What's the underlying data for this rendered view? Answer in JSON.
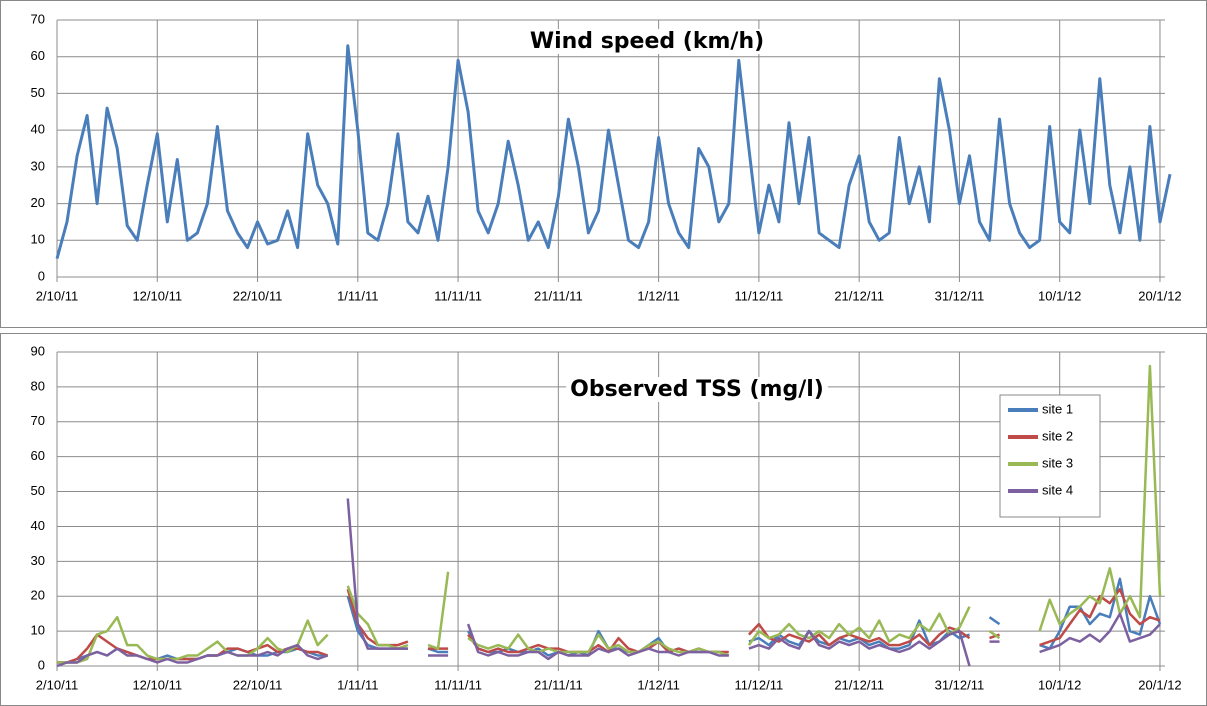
{
  "chart_data": [
    {
      "type": "line",
      "title": "Wind speed (km/h)",
      "color": "#4a7ebb",
      "grid": true,
      "x": [
        "2011-10-02",
        "2011-10-03",
        "2011-10-04",
        "2011-10-05",
        "2011-10-06",
        "2011-10-07",
        "2011-10-08",
        "2011-10-09",
        "2011-10-10",
        "2011-10-11",
        "2011-10-12",
        "2011-10-13",
        "2011-10-14",
        "2011-10-15",
        "2011-10-16",
        "2011-10-17",
        "2011-10-18",
        "2011-10-19",
        "2011-10-20",
        "2011-10-21",
        "2011-10-22",
        "2011-10-23",
        "2011-10-24",
        "2011-10-25",
        "2011-10-26",
        "2011-10-27",
        "2011-10-28",
        "2011-10-29",
        "2011-10-30",
        "2011-10-31",
        "2011-11-01",
        "2011-11-02",
        "2011-11-03",
        "2011-11-04",
        "2011-11-05",
        "2011-11-06",
        "2011-11-07",
        "2011-11-08",
        "2011-11-09",
        "2011-11-10",
        "2011-11-11",
        "2011-11-12",
        "2011-11-13",
        "2011-11-14",
        "2011-11-15",
        "2011-11-16",
        "2011-11-17",
        "2011-11-18",
        "2011-11-19",
        "2011-11-20",
        "2011-11-21",
        "2011-11-22",
        "2011-11-23",
        "2011-11-24",
        "2011-11-25",
        "2011-11-26",
        "2011-11-27",
        "2011-11-28",
        "2011-11-29",
        "2011-11-30",
        "2011-12-01",
        "2011-12-02",
        "2011-12-03",
        "2011-12-04",
        "2011-12-05",
        "2011-12-06",
        "2011-12-07",
        "2011-12-08",
        "2011-12-09",
        "2011-12-10",
        "2011-12-11",
        "2011-12-12",
        "2011-12-13",
        "2011-12-14",
        "2011-12-15",
        "2011-12-16",
        "2011-12-17",
        "2011-12-18",
        "2011-12-19",
        "2011-12-20",
        "2011-12-21",
        "2011-12-22",
        "2011-12-23",
        "2011-12-24",
        "2011-12-25",
        "2011-12-26",
        "2011-12-27",
        "2011-12-28",
        "2011-12-29",
        "2011-12-30",
        "2011-12-31",
        "2012-01-01",
        "2012-01-02",
        "2012-01-03",
        "2012-01-04",
        "2012-01-05",
        "2012-01-06",
        "2012-01-07",
        "2012-01-08",
        "2012-01-09",
        "2012-01-10",
        "2012-01-11",
        "2012-01-12",
        "2012-01-13",
        "2012-01-14",
        "2012-01-15",
        "2012-01-16",
        "2012-01-17",
        "2012-01-18",
        "2012-01-19",
        "2012-01-20",
        "2012-01-21"
      ],
      "values": [
        5,
        15,
        33,
        44,
        20,
        46,
        35,
        14,
        10,
        25,
        39,
        15,
        32,
        10,
        12,
        20,
        41,
        18,
        12,
        8,
        15,
        9,
        10,
        18,
        8,
        39,
        25,
        20,
        9,
        63,
        40,
        12,
        10,
        20,
        39,
        15,
        12,
        22,
        10,
        30,
        59,
        45,
        18,
        12,
        20,
        37,
        25,
        10,
        15,
        8,
        22,
        43,
        30,
        12,
        18,
        40,
        25,
        10,
        8,
        15,
        38,
        20,
        12,
        8,
        35,
        30,
        15,
        20,
        59,
        35,
        12,
        25,
        15,
        42,
        20,
        38,
        12,
        10,
        8,
        25,
        33,
        15,
        10,
        12,
        38,
        20,
        30,
        15,
        54,
        40,
        20,
        33,
        15,
        10,
        43,
        20,
        12,
        8,
        10,
        41,
        15,
        12,
        40,
        20,
        54,
        25,
        12,
        30,
        10,
        41,
        15,
        28
      ],
      "xlim": [
        "2011-10-02",
        "2012-01-21"
      ],
      "xticks": [
        {
          "value": "2011-10-02",
          "label": "2/10/11"
        },
        {
          "value": "2011-10-12",
          "label": "12/10/11"
        },
        {
          "value": "2011-10-22",
          "label": "22/10/11"
        },
        {
          "value": "2011-11-01",
          "label": "1/11/11"
        },
        {
          "value": "2011-11-11",
          "label": "11/11/11"
        },
        {
          "value": "2011-11-21",
          "label": "21/11/11"
        },
        {
          "value": "2011-12-01",
          "label": "1/12/11"
        },
        {
          "value": "2011-12-11",
          "label": "11/12/11"
        },
        {
          "value": "2011-12-21",
          "label": "21/12/11"
        },
        {
          "value": "2011-12-31",
          "label": "31/12/11"
        },
        {
          "value": "2012-01-10",
          "label": "10/1/12"
        },
        {
          "value": "2012-01-20",
          "label": "20/1/12"
        }
      ],
      "ylim": [
        0,
        70
      ],
      "yticks": [
        0,
        10,
        20,
        30,
        40,
        50,
        60,
        70
      ]
    },
    {
      "type": "line",
      "title": "Observed TSS (mg/l)",
      "grid": true,
      "legend": "upper right",
      "x": [
        "2011-10-02",
        "2011-10-03",
        "2011-10-04",
        "2011-10-05",
        "2011-10-06",
        "2011-10-07",
        "2011-10-08",
        "2011-10-09",
        "2011-10-10",
        "2011-10-11",
        "2011-10-12",
        "2011-10-13",
        "2011-10-14",
        "2011-10-15",
        "2011-10-16",
        "2011-10-17",
        "2011-10-18",
        "2011-10-19",
        "2011-10-20",
        "2011-10-21",
        "2011-10-22",
        "2011-10-23",
        "2011-10-24",
        "2011-10-25",
        "2011-10-26",
        "2011-10-27",
        "2011-10-28",
        "2011-10-29",
        "2011-10-30",
        "2011-10-31",
        "2011-11-01",
        "2011-11-02",
        "2011-11-03",
        "2011-11-04",
        "2011-11-05",
        "2011-11-06",
        "2011-11-07",
        "2011-11-08",
        "2011-11-09",
        "2011-11-10",
        "2011-11-11",
        "2011-11-12",
        "2011-11-13",
        "2011-11-14",
        "2011-11-15",
        "2011-11-16",
        "2011-11-17",
        "2011-11-18",
        "2011-11-19",
        "2011-11-20",
        "2011-11-21",
        "2011-11-22",
        "2011-11-23",
        "2011-11-24",
        "2011-11-25",
        "2011-11-26",
        "2011-11-27",
        "2011-11-28",
        "2011-11-29",
        "2011-11-30",
        "2011-12-01",
        "2011-12-02",
        "2011-12-03",
        "2011-12-04",
        "2011-12-05",
        "2011-12-06",
        "2011-12-07",
        "2011-12-08",
        "2011-12-09",
        "2011-12-10",
        "2011-12-11",
        "2011-12-12",
        "2011-12-13",
        "2011-12-14",
        "2011-12-15",
        "2011-12-16",
        "2011-12-17",
        "2011-12-18",
        "2011-12-19",
        "2011-12-20",
        "2011-12-21",
        "2011-12-22",
        "2011-12-23",
        "2011-12-24",
        "2011-12-25",
        "2011-12-26",
        "2011-12-27",
        "2011-12-28",
        "2011-12-29",
        "2011-12-30",
        "2011-12-31",
        "2012-01-01",
        "2012-01-02",
        "2012-01-03",
        "2012-01-04",
        "2012-01-05",
        "2012-01-06",
        "2012-01-07",
        "2012-01-08",
        "2012-01-09",
        "2012-01-10",
        "2012-01-11",
        "2012-01-12",
        "2012-01-13",
        "2012-01-14",
        "2012-01-15",
        "2012-01-16",
        "2012-01-17",
        "2012-01-18",
        "2012-01-19",
        "2012-01-20",
        "2012-01-21"
      ],
      "series": [
        {
          "name": "site 1",
          "color": "#4a7ebb",
          "values": [
            1,
            1,
            2,
            3,
            4,
            3,
            5,
            4,
            3,
            2,
            2,
            3,
            2,
            2,
            2,
            3,
            3,
            4,
            5,
            4,
            3,
            3,
            4,
            4,
            5,
            4,
            3,
            3,
            null,
            20,
            10,
            6,
            5,
            5,
            5,
            5,
            null,
            5,
            4,
            4,
            null,
            10,
            5,
            4,
            4,
            5,
            4,
            4,
            5,
            3,
            4,
            3,
            4,
            3,
            10,
            5,
            5,
            4,
            4,
            6,
            8,
            4,
            5,
            4,
            4,
            4,
            4,
            3,
            null,
            7,
            8,
            6,
            9,
            7,
            6,
            10,
            7,
            6,
            8,
            7,
            8,
            6,
            7,
            5,
            5,
            6,
            13,
            6,
            7,
            10,
            8,
            9,
            null,
            14,
            12,
            null,
            null,
            null,
            6,
            5,
            10,
            17,
            17,
            12,
            15,
            14,
            25,
            10,
            9,
            20,
            12,
            null
          ]
        },
        {
          "name": "site 2",
          "color": "#be4b48",
          "values": [
            1,
            1,
            2,
            5,
            9,
            7,
            5,
            4,
            3,
            2,
            2,
            2,
            2,
            2,
            2,
            3,
            3,
            5,
            5,
            4,
            5,
            6,
            4,
            5,
            5,
            4,
            4,
            3,
            null,
            22,
            12,
            8,
            6,
            6,
            6,
            7,
            null,
            5,
            5,
            5,
            null,
            9,
            5,
            4,
            5,
            4,
            4,
            5,
            6,
            5,
            5,
            4,
            4,
            4,
            6,
            4,
            8,
            5,
            4,
            5,
            7,
            4,
            5,
            4,
            5,
            4,
            4,
            4,
            null,
            9,
            12,
            8,
            7,
            9,
            8,
            7,
            9,
            6,
            8,
            9,
            8,
            7,
            8,
            6,
            6,
            7,
            9,
            6,
            9,
            11,
            10,
            8,
            null,
            8,
            9,
            null,
            null,
            null,
            6,
            7,
            8,
            12,
            16,
            14,
            20,
            18,
            22,
            15,
            12,
            14,
            13,
            null
          ]
        },
        {
          "name": "site 3",
          "color": "#98b954",
          "values": [
            1,
            1,
            1,
            2,
            9,
            10,
            14,
            6,
            6,
            3,
            2,
            2,
            2,
            3,
            3,
            5,
            7,
            4,
            3,
            3,
            5,
            8,
            5,
            4,
            6,
            13,
            6,
            9,
            null,
            23,
            15,
            12,
            6,
            6,
            5,
            6,
            null,
            6,
            5,
            27,
            null,
            8,
            6,
            5,
            6,
            5,
            9,
            5,
            4,
            5,
            4,
            4,
            4,
            4,
            9,
            5,
            6,
            4,
            4,
            6,
            7,
            5,
            4,
            4,
            5,
            4,
            4,
            3,
            null,
            6,
            10,
            8,
            9,
            12,
            9,
            8,
            10,
            8,
            12,
            9,
            11,
            8,
            13,
            7,
            9,
            8,
            12,
            10,
            15,
            9,
            11,
            17,
            null,
            10,
            8,
            null,
            null,
            null,
            10,
            19,
            12,
            15,
            17,
            20,
            18,
            28,
            15,
            20,
            14,
            86,
            20,
            null
          ]
        },
        {
          "name": "site 4",
          "color": "#7d60a0",
          "values": [
            0,
            1,
            1,
            3,
            4,
            3,
            5,
            3,
            3,
            2,
            1,
            2,
            1,
            1,
            2,
            3,
            3,
            4,
            3,
            3,
            3,
            4,
            3,
            5,
            6,
            3,
            2,
            3,
            null,
            48,
            12,
            5,
            5,
            5,
            5,
            5,
            null,
            3,
            3,
            3,
            null,
            12,
            4,
            3,
            4,
            3,
            3,
            4,
            4,
            2,
            4,
            3,
            3,
            3,
            5,
            4,
            5,
            3,
            4,
            5,
            4,
            4,
            3,
            4,
            4,
            4,
            3,
            3,
            null,
            5,
            6,
            5,
            8,
            6,
            5,
            10,
            6,
            5,
            7,
            6,
            7,
            5,
            6,
            5,
            4,
            5,
            7,
            5,
            7,
            9,
            10,
            0,
            null,
            7,
            7,
            null,
            null,
            null,
            4,
            5,
            6,
            8,
            7,
            9,
            7,
            10,
            15,
            7,
            8,
            9,
            12,
            null
          ]
        }
      ],
      "xlim": [
        "2011-10-02",
        "2012-01-21"
      ],
      "xticks": [
        {
          "value": "2011-10-02",
          "label": "2/10/11"
        },
        {
          "value": "2011-10-12",
          "label": "12/10/11"
        },
        {
          "value": "2011-10-22",
          "label": "22/10/11"
        },
        {
          "value": "2011-11-01",
          "label": "1/11/11"
        },
        {
          "value": "2011-11-11",
          "label": "11/11/11"
        },
        {
          "value": "2011-11-21",
          "label": "21/11/11"
        },
        {
          "value": "2011-12-01",
          "label": "1/12/11"
        },
        {
          "value": "2011-12-11",
          "label": "11/12/11"
        },
        {
          "value": "2011-12-21",
          "label": "21/12/11"
        },
        {
          "value": "2011-12-31",
          "label": "31/12/11"
        },
        {
          "value": "2012-01-10",
          "label": "10/1/12"
        },
        {
          "value": "2012-01-20",
          "label": "20/1/12"
        }
      ],
      "ylim": [
        0,
        90
      ],
      "yticks": [
        0,
        10,
        20,
        30,
        40,
        50,
        60,
        70,
        80,
        90
      ]
    }
  ]
}
